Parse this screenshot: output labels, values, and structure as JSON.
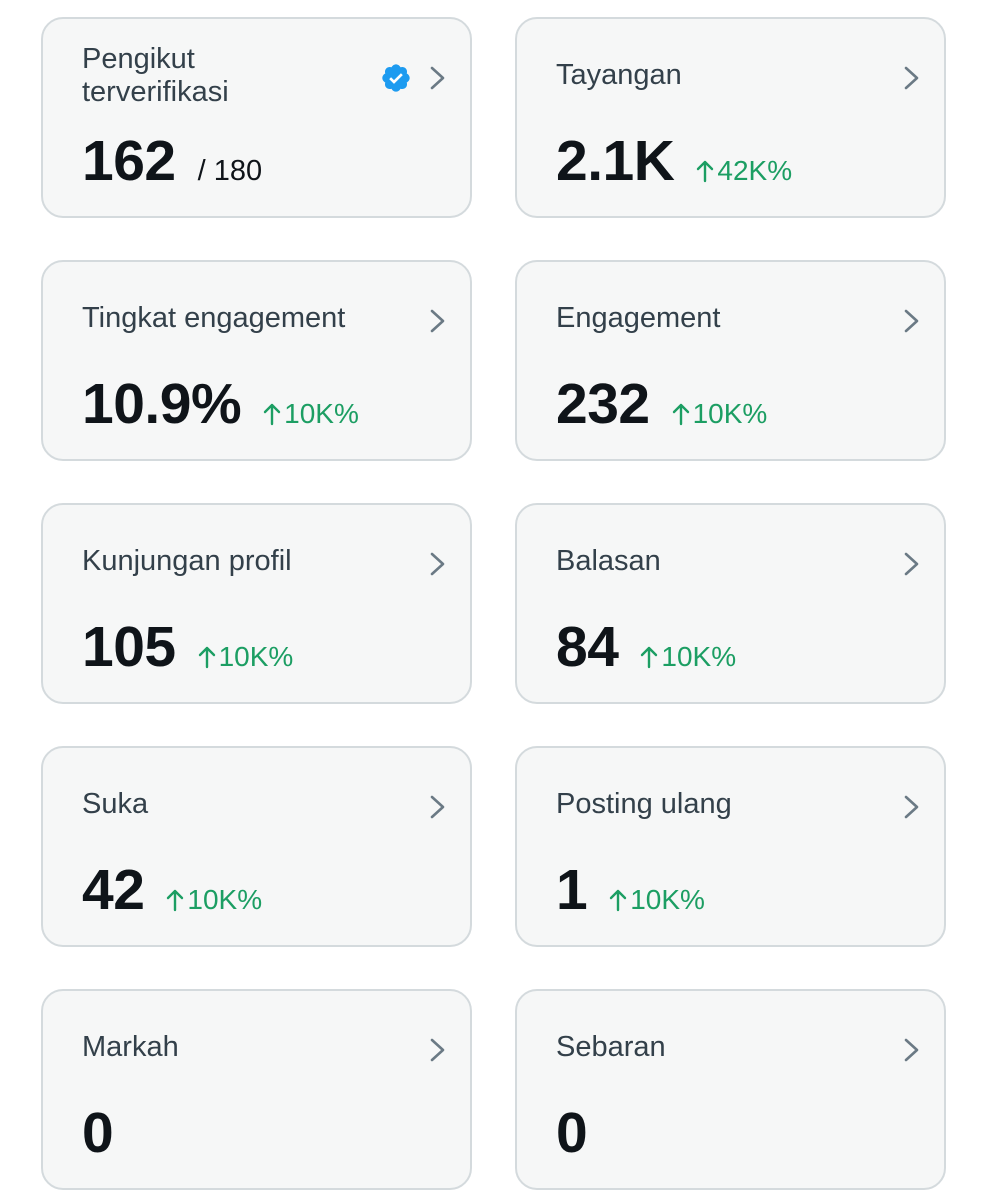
{
  "colors": {
    "card_background": "#f6f7f7",
    "card_border": "#d4dadd",
    "value_text": "#0f1419",
    "label_text": "#33404a",
    "positive_change": "#1c9e63",
    "chevron": "#6b7a85",
    "verified_badge": "#1d9bf0"
  },
  "metrics": [
    {
      "label": "Pengikut terverifikasi",
      "value": "162",
      "sub": "/ 180",
      "change": "",
      "icon": "verified-badge-icon"
    },
    {
      "label": "Tayangan",
      "value": "2.1K",
      "sub": "",
      "change": "42K%"
    },
    {
      "label": "Tingkat engagement",
      "value": "10.9%",
      "sub": "",
      "change": "10K%"
    },
    {
      "label": "Engagement",
      "value": "232",
      "sub": "",
      "change": "10K%"
    },
    {
      "label": "Kunjungan profil",
      "value": "105",
      "sub": "",
      "change": "10K%"
    },
    {
      "label": "Balasan",
      "value": "84",
      "sub": "",
      "change": "10K%"
    },
    {
      "label": "Suka",
      "value": "42",
      "sub": "",
      "change": "10K%"
    },
    {
      "label": "Posting ulang",
      "value": "1",
      "sub": "",
      "change": "10K%"
    },
    {
      "label": "Markah",
      "value": "0",
      "sub": "",
      "change": ""
    },
    {
      "label": "Sebaran",
      "value": "0",
      "sub": "",
      "change": ""
    }
  ]
}
